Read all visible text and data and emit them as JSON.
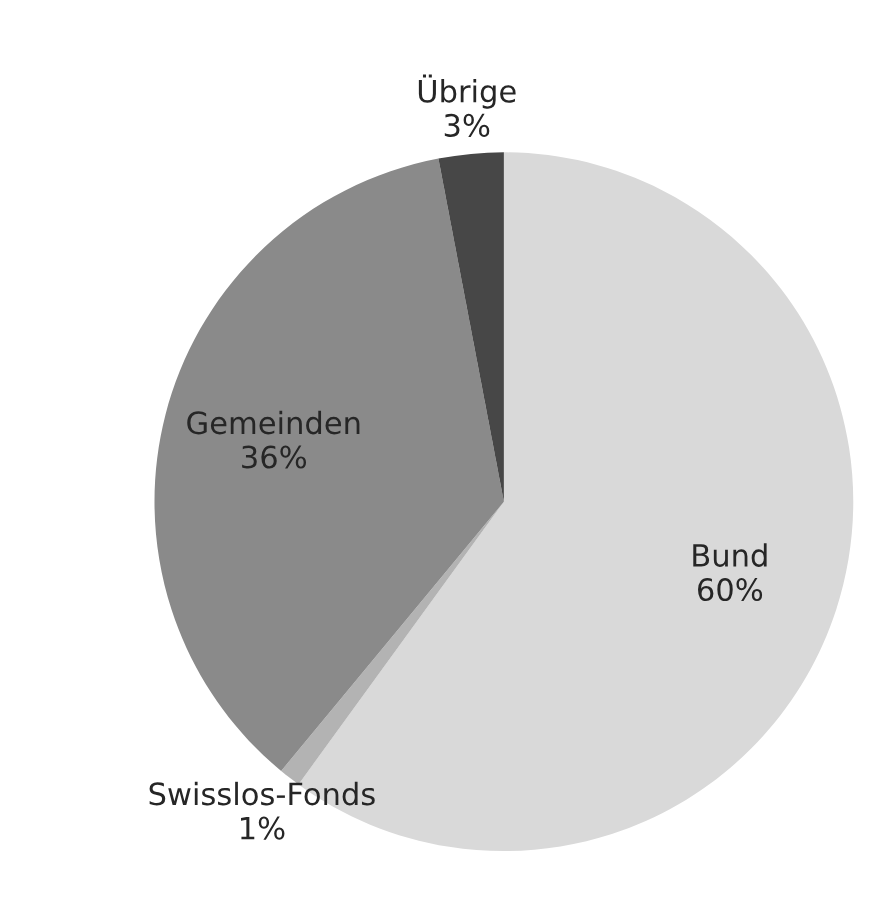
{
  "chart_data": {
    "type": "pie",
    "categories": [
      "Bund",
      "Swisslos-Fonds",
      "Gemeinden",
      "Übrige"
    ],
    "values": [
      60,
      1,
      36,
      3
    ],
    "colors": [
      "#d9d9d9",
      "#b3b3b3",
      "#8a8a8a",
      "#474747"
    ],
    "value_labels": [
      "60%",
      "1%",
      "36%",
      "3%"
    ]
  }
}
